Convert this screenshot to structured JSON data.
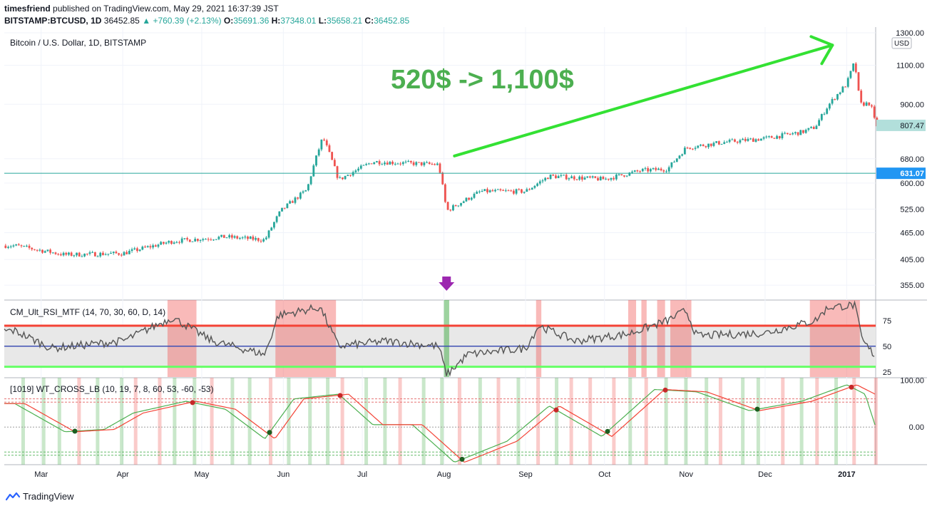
{
  "header": {
    "author": "timesfriend",
    "published": "published on TradingView.com, May 29, 2021 16:37:39 JST",
    "symbol": "BITSTAMP:BTCUSD, 1D",
    "price": "36452.85",
    "change": "+760.39 (+2.13%)",
    "o_label": "O:",
    "o": "35691.36",
    "h_label": "H:",
    "h": "37348.01",
    "l_label": "L:",
    "l": "35658.21",
    "c_label": "C:",
    "c": "36452.85"
  },
  "footer": {
    "brand": "TradingView"
  },
  "colors": {
    "up": "#26a69a",
    "down": "#ef5350",
    "annotation": "#33e133",
    "marker": "#9c27b0"
  },
  "chart_data": [
    {
      "type": "candlestick",
      "title": "Bitcoin / U.S. Dollar, 1D, BITSTAMP",
      "annotation": "520$ -> 1,100$",
      "currency": "USD",
      "scale": "log",
      "ylim": [
        330,
        1300
      ],
      "y_ticks": [
        "1300.00",
        "1100.00",
        "900.00",
        "680.00",
        "600.00",
        "525.00",
        "465.00",
        "405.00",
        "355.00"
      ],
      "y_tick_values": [
        1300,
        1100,
        900,
        680,
        600,
        525,
        465,
        405,
        355
      ],
      "x_ticks": [
        "Mar",
        "Apr",
        "May",
        "Jun",
        "Jul",
        "Aug",
        "Sep",
        "Oct",
        "Nov",
        "Dec",
        "2017"
      ],
      "current_price_label": "807.47",
      "current_price": 807.47,
      "hline_label": "631.07",
      "hline": 631.07,
      "key_points": [
        {
          "date": "2016-02-20",
          "close": 435
        },
        {
          "date": "2016-03-10",
          "close": 415
        },
        {
          "date": "2016-04-01",
          "close": 418
        },
        {
          "date": "2016-04-20",
          "close": 445
        },
        {
          "date": "2016-05-10",
          "close": 455
        },
        {
          "date": "2016-05-25",
          "close": 448
        },
        {
          "date": "2016-05-31",
          "close": 520
        },
        {
          "date": "2016-06-10",
          "close": 580
        },
        {
          "date": "2016-06-16",
          "close": 760
        },
        {
          "date": "2016-06-22",
          "close": 610
        },
        {
          "date": "2016-07-05",
          "close": 670
        },
        {
          "date": "2016-07-30",
          "close": 660
        },
        {
          "date": "2016-08-02",
          "close": 520
        },
        {
          "date": "2016-08-15",
          "close": 575
        },
        {
          "date": "2016-09-01",
          "close": 575
        },
        {
          "date": "2016-09-10",
          "close": 622
        },
        {
          "date": "2016-10-01",
          "close": 612
        },
        {
          "date": "2016-10-15",
          "close": 640
        },
        {
          "date": "2016-10-25",
          "close": 645
        },
        {
          "date": "2016-11-01",
          "close": 720
        },
        {
          "date": "2016-11-15",
          "close": 740
        },
        {
          "date": "2016-12-01",
          "close": 755
        },
        {
          "date": "2016-12-15",
          "close": 780
        },
        {
          "date": "2016-12-20",
          "close": 800
        },
        {
          "date": "2016-12-25",
          "close": 895
        },
        {
          "date": "2017-01-01",
          "close": 1000
        },
        {
          "date": "2017-01-04",
          "close": 1120
        },
        {
          "date": "2017-01-06",
          "close": 900
        },
        {
          "date": "2017-01-10",
          "close": 905
        },
        {
          "date": "2017-01-12",
          "close": 807
        }
      ]
    },
    {
      "type": "line",
      "title": "CM_Ult_RSI_MTF (14, 70, 30, 60, D, 14)",
      "ylim": [
        20,
        95
      ],
      "y_ticks": [
        "75",
        "50",
        "25"
      ],
      "y_tick_values": [
        75,
        50,
        25
      ],
      "levels": [
        70,
        50,
        30
      ],
      "key_points": [
        {
          "date": "2016-02-20",
          "value": 65
        },
        {
          "date": "2016-03-05",
          "value": 48
        },
        {
          "date": "2016-04-01",
          "value": 55
        },
        {
          "date": "2016-04-20",
          "value": 78
        },
        {
          "date": "2016-05-05",
          "value": 55
        },
        {
          "date": "2016-05-25",
          "value": 42
        },
        {
          "date": "2016-05-30",
          "value": 80
        },
        {
          "date": "2016-06-15",
          "value": 88
        },
        {
          "date": "2016-06-22",
          "value": 50
        },
        {
          "date": "2016-07-10",
          "value": 55
        },
        {
          "date": "2016-07-30",
          "value": 50
        },
        {
          "date": "2016-08-02",
          "value": 22
        },
        {
          "date": "2016-08-10",
          "value": 42
        },
        {
          "date": "2016-09-01",
          "value": 48
        },
        {
          "date": "2016-09-06",
          "value": 70
        },
        {
          "date": "2016-09-20",
          "value": 55
        },
        {
          "date": "2016-10-10",
          "value": 62
        },
        {
          "date": "2016-10-25",
          "value": 75
        },
        {
          "date": "2016-11-01",
          "value": 85
        },
        {
          "date": "2016-11-05",
          "value": 60
        },
        {
          "date": "2016-12-01",
          "value": 63
        },
        {
          "date": "2016-12-20",
          "value": 75
        },
        {
          "date": "2016-12-25",
          "value": 88
        },
        {
          "date": "2017-01-04",
          "value": 90
        },
        {
          "date": "2017-01-07",
          "value": 55
        },
        {
          "date": "2017-01-12",
          "value": 40
        }
      ]
    },
    {
      "type": "line",
      "title": "[1019] WT_CROSS_LB (10, 19, 7, 8, 60, 53, -60, -53)",
      "ylim": [
        -80,
        105
      ],
      "y_ticks": [
        "100.00",
        "0.00"
      ],
      "y_tick_values": [
        100,
        0
      ],
      "levels": [
        60,
        53,
        0,
        -53,
        -60
      ],
      "key_points": [
        {
          "date": "2016-02-20",
          "value": 50
        },
        {
          "date": "2016-03-10",
          "value": -10
        },
        {
          "date": "2016-03-25",
          "value": -5
        },
        {
          "date": "2016-04-05",
          "value": 30
        },
        {
          "date": "2016-04-25",
          "value": 55
        },
        {
          "date": "2016-05-10",
          "value": 38
        },
        {
          "date": "2016-05-25",
          "value": -25
        },
        {
          "date": "2016-06-05",
          "value": 60
        },
        {
          "date": "2016-06-22",
          "value": 70
        },
        {
          "date": "2016-07-05",
          "value": 5
        },
        {
          "date": "2016-07-20",
          "value": 5
        },
        {
          "date": "2016-08-05",
          "value": -75
        },
        {
          "date": "2016-08-25",
          "value": -30
        },
        {
          "date": "2016-09-10",
          "value": 45
        },
        {
          "date": "2016-09-30",
          "value": -20
        },
        {
          "date": "2016-10-20",
          "value": 80
        },
        {
          "date": "2016-11-05",
          "value": 75
        },
        {
          "date": "2016-11-25",
          "value": 35
        },
        {
          "date": "2016-12-15",
          "value": 55
        },
        {
          "date": "2017-01-01",
          "value": 90
        },
        {
          "date": "2017-01-08",
          "value": 70
        },
        {
          "date": "2017-01-12",
          "value": 0
        }
      ]
    }
  ]
}
